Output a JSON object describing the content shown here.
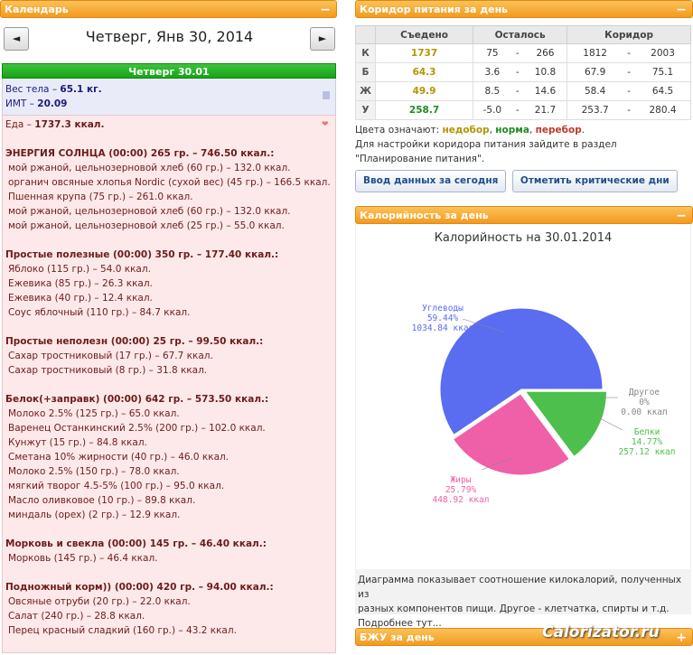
{
  "calendar": {
    "header": "Календарь",
    "toggle": "−",
    "prev": "◄",
    "next": "►",
    "date_title": "Четверг, Янв 30, 2014",
    "day_bar": "Четверг 30.01"
  },
  "weight": {
    "weight_label": "Вес тела – ",
    "weight_value": "65.1 кг.",
    "bmi_label": "ИМТ – ",
    "bmi_value": "20.09"
  },
  "food": {
    "total_label": "Еда – ",
    "total_value": "1737.3 ккал.",
    "meals": [
      {
        "title": "ЭНЕРГИЯ СОЛНЦА (00:00) 265 гр. – 746.50 ккал.:",
        "items": [
          "мой ржаной, цельнозерновой хлеб (60 гр.) – 132.0 ккал.",
          "органич овсяные хлопья Nordic (сухой вес) (45 гр.) – 166.5 ккал.",
          "Пшенная крупа (75 гр.) – 261.0 ккал.",
          "мой ржаной, цельнозерновой хлеб (60 гр.) – 132.0 ккал.",
          "мой ржаной, цельнозерновой хлеб (25 гр.) – 55.0 ккал."
        ]
      },
      {
        "title": "Простые полезные (00:00) 350 гр. – 177.40 ккал.:",
        "items": [
          "Яблоко (115 гр.) – 54.0 ккал.",
          "Ежевика (85 гр.) – 26.3 ккал.",
          "Ежевика (40 гр.) – 12.4 ккал.",
          "Соус яблочный (110 гр.) – 84.7 ккал."
        ]
      },
      {
        "title": "Простые неполезн (00:00) 25 гр. – 99.50 ккал.:",
        "items": [
          "Сахар тростниковый (17 гр.) – 67.7 ккал.",
          "Сахар тростниковый (8 гр.) – 31.8 ккал."
        ]
      },
      {
        "title": "Белок(+заправк) (00:00) 642 гр. – 573.50 ккал.:",
        "items": [
          "Молоко 2.5% (125 гр.) – 65.0 ккал.",
          "Варенец Останкинский 2.5% (200 гр.) – 102.0 ккал.",
          "Кунжут (15 гр.) – 84.8 ккал.",
          "Сметана 10% жирности (40 гр.) – 46.0 ккал.",
          "Молоко 2.5% (150 гр.) – 78.0 ккал.",
          "мягкий творог 4.5-5% (100 гр.) – 95.0 ккал.",
          "Масло оливковое (10 гр.) – 89.8 ккал.",
          "миндаль (орех) (2 гр.) – 12.9 ккал."
        ]
      },
      {
        "title": "Морковь и свекла (00:00) 145 гр. – 46.40 ккал.:",
        "items": [
          "Морковь (145 гр.) – 46.4 ккал."
        ]
      },
      {
        "title": "Подножный корм)) (00:00) 420 гр. – 94.00 ккал.:",
        "items": [
          "Овсяные отруби (20 гр.) – 22.0 ккал.",
          "Салат (240 гр.) – 28.8 ккал.",
          "Перец красный сладкий (160 гр.) – 43.2 ккал."
        ]
      }
    ]
  },
  "corridor": {
    "header": "Коридор питания за день",
    "toggle": "−",
    "columns": [
      "",
      "Съедено",
      "Осталось",
      "Коридор"
    ],
    "rows": [
      {
        "label": "К",
        "eaten": "1737",
        "status": "under",
        "left_min": "75",
        "left_max": "266",
        "corr_min": "1812",
        "corr_max": "2003"
      },
      {
        "label": "Б",
        "eaten": "64.3",
        "status": "under",
        "left_min": "3.6",
        "left_max": "10.8",
        "corr_min": "67.9",
        "corr_max": "75.1"
      },
      {
        "label": "Ж",
        "eaten": "49.9",
        "status": "under",
        "left_min": "8.5",
        "left_max": "14.6",
        "corr_min": "58.4",
        "corr_max": "64.5"
      },
      {
        "label": "У",
        "eaten": "258.7",
        "status": "norm",
        "left_min": "-5.0",
        "left_max": "21.7",
        "corr_min": "253.7",
        "corr_max": "280.4"
      }
    ],
    "dash": "-",
    "legend_prefix": "Цвета означают: ",
    "legend_under": "недобор",
    "legend_norm": "норма",
    "legend_over": "перебор",
    "hint_line1": "Для настройки коридора питания зайдите в раздел",
    "hint_line2": "\"Планирование питания\".",
    "btn_input": "Ввод данных за сегодня",
    "btn_critical": "Отметить критические дни",
    "colors": {
      "under": "#b39400",
      "norm": "#1e8c1e",
      "over": "#c0392b"
    }
  },
  "calories": {
    "header": "Калорийность за день",
    "toggle": "−",
    "caption_line1": "Диаграмма показывает соотношение килокалорий, полученных из",
    "caption_line2": "разных компонентов пищи. Другое - клетчатка, спирты и т.д.",
    "caption_line3": "Подробнее тут..."
  },
  "chart_data": {
    "type": "pie",
    "title": "Калорийность на 30.01.2014",
    "slices": [
      {
        "name": "Углеводы",
        "percent": 59.44,
        "value": "1034.84 ккал",
        "percent_label": "59.44%",
        "color": "#5a6cf0"
      },
      {
        "name": "Белки",
        "percent": 14.77,
        "value": "257.12 ккал",
        "percent_label": "14.77%",
        "color": "#4cbf4c"
      },
      {
        "name": "Жиры",
        "percent": 25.79,
        "value": "448.92 ккал",
        "percent_label": "25.79%",
        "color": "#f060a8"
      },
      {
        "name": "Другое",
        "percent": 0,
        "value": "0.00 ккал",
        "percent_label": "0%",
        "color": "#999999"
      }
    ]
  },
  "bju": {
    "header": "БЖУ за день",
    "toggle": "+"
  },
  "watermark": "Calorizator.ru"
}
